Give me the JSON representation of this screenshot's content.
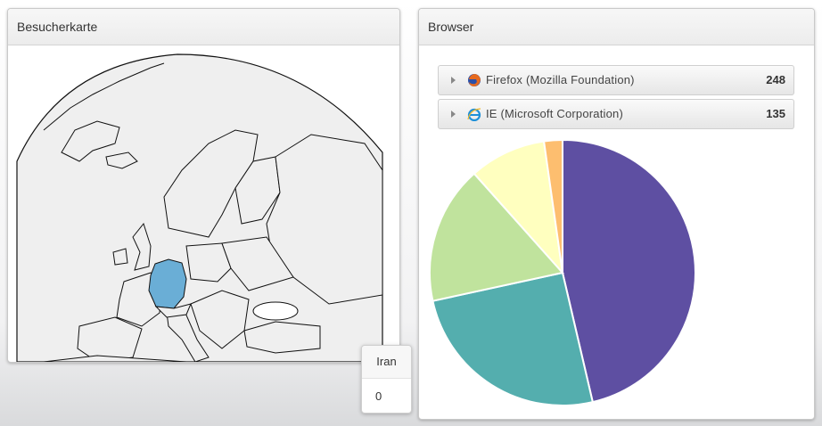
{
  "map_panel": {
    "title": "Besucherkarte",
    "highlighted_country": "Germany",
    "highlight_color": "#6aaed6"
  },
  "browser_panel": {
    "title": "Browser",
    "items": [
      {
        "name": "Firefox (Mozilla Foundation)",
        "count": "248",
        "icon": "firefox-icon"
      },
      {
        "name": "IE (Microsoft Corporation)",
        "count": "135",
        "icon": "ie-icon"
      }
    ],
    "pie_colors": [
      "#5e4fa2",
      "#54aeae",
      "#c0e39d",
      "#ffffbf",
      "#fdbe6f"
    ]
  },
  "chart_data": {
    "type": "pie",
    "values": [
      248,
      135,
      90,
      50,
      12
    ],
    "colors": [
      "#5e4fa2",
      "#54aeae",
      "#c0e39d",
      "#ffffbf",
      "#fdbe6f"
    ]
  },
  "tooltip": {
    "label": "Iran",
    "value": "0"
  }
}
